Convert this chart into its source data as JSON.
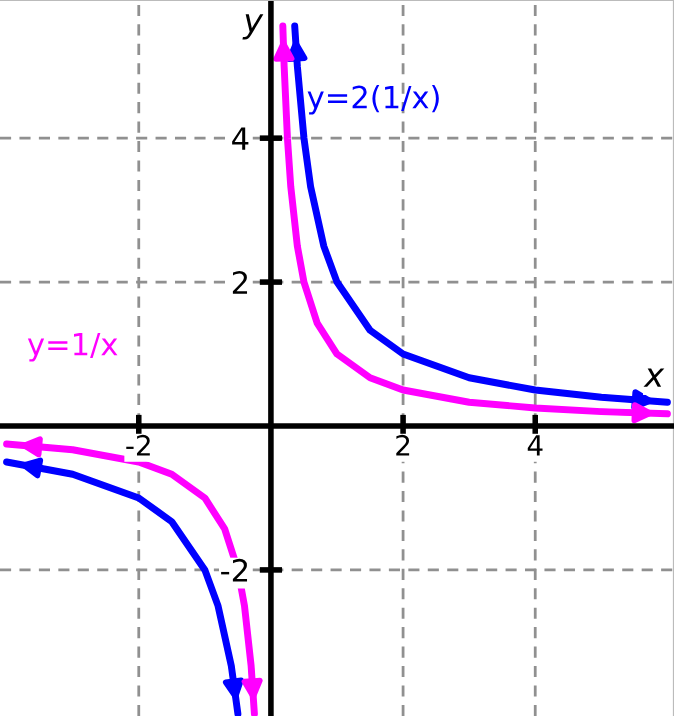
{
  "chart_data": {
    "type": "line",
    "series": [
      {
        "color": "#0000ff",
        "x": [
          -4,
          -3,
          -2,
          -1.5,
          -1,
          -0.8,
          -0.6,
          -0.5,
          null,
          0.36,
          0.4,
          0.5,
          0.6,
          0.8,
          1,
          1.5,
          2,
          3,
          4,
          5,
          6
        ],
        "values": [
          -0.5,
          -0.67,
          -1,
          -1.33,
          -2,
          -2.5,
          -3.33,
          -4,
          null,
          5.56,
          5,
          4,
          3.33,
          2.5,
          2,
          1.33,
          1,
          0.67,
          0.5,
          0.4,
          0.33
        ]
      },
      {
        "color": "#ff00ff",
        "x": [
          -4,
          -3,
          -2,
          -1.5,
          -1,
          -0.7,
          -0.5,
          -0.4,
          -0.3,
          -0.25,
          null,
          0.18,
          0.2,
          0.25,
          0.3,
          0.4,
          0.5,
          0.7,
          1,
          1.5,
          2,
          3,
          4,
          5,
          6
        ],
        "values": [
          -0.25,
          -0.33,
          -0.5,
          -0.67,
          -1,
          -1.43,
          -2,
          -2.5,
          -3.33,
          -4,
          null,
          5.56,
          5,
          4,
          3.33,
          2.5,
          2,
          1.43,
          1,
          0.67,
          0.5,
          0.33,
          0.25,
          0.2,
          0.17
        ]
      }
    ],
    "annotations": [
      "y=2(1/x)",
      "y=1/x"
    ],
    "xlabel": "x",
    "ylabel": "y",
    "xlim": [
      -4.1,
      6.1
    ],
    "ylim": [
      -4.03,
      5.92
    ],
    "xticks": [
      -2,
      2,
      4
    ],
    "yticks": [
      -2,
      2,
      4
    ],
    "grid": true,
    "legend": false,
    "marker": "none",
    "line_style": "solid"
  }
}
